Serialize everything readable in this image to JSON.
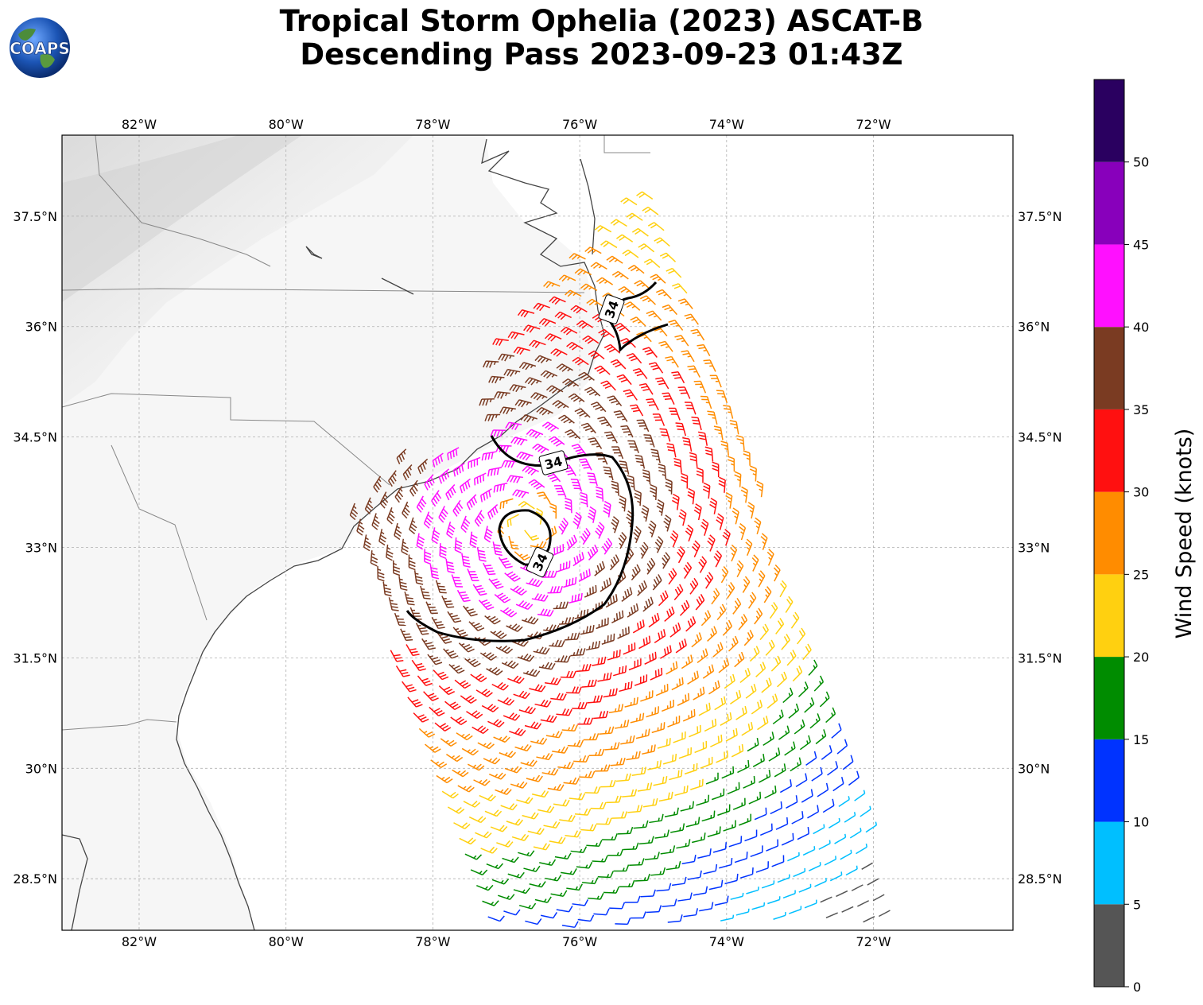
{
  "title": {
    "line1": "Tropical Storm Ophelia (2023) ASCAT-B",
    "line2": "Descending Pass 2023-09-23 01:43Z"
  },
  "logo": {
    "text": "COAPS"
  },
  "map": {
    "lon_range": [
      -83.05,
      -70.1
    ],
    "lat_range": [
      27.8,
      38.6
    ],
    "lon_ticks": [
      {
        "value": -82,
        "label": "82°W"
      },
      {
        "value": -80,
        "label": "80°W"
      },
      {
        "value": -78,
        "label": "78°W"
      },
      {
        "value": -76,
        "label": "76°W"
      },
      {
        "value": -74,
        "label": "74°W"
      },
      {
        "value": -72,
        "label": "72°W"
      }
    ],
    "lat_ticks": [
      {
        "value": 37.5,
        "label": "37.5°N"
      },
      {
        "value": 36,
        "label": "36°N"
      },
      {
        "value": 34.5,
        "label": "34.5°N"
      },
      {
        "value": 33,
        "label": "33°N"
      },
      {
        "value": 31.5,
        "label": "31.5°N"
      },
      {
        "value": 30,
        "label": "30°N"
      },
      {
        "value": 28.5,
        "label": "28.5°N"
      }
    ],
    "gridlines": true,
    "storm_center": {
      "lon": -76.7,
      "lat": 33.3
    },
    "contour_label": "34",
    "swath": {
      "northwest": [
        -78.6,
        34.8
      ],
      "direction": "descending"
    }
  },
  "colorbar": {
    "label": "Wind Speed (knots)",
    "ticks": [
      "0",
      "5",
      "10",
      "15",
      "20",
      "25",
      "30",
      "35",
      "40",
      "45",
      "50"
    ],
    "bins": [
      {
        "min": 0,
        "max": 5,
        "color": "#555555"
      },
      {
        "min": 5,
        "max": 10,
        "color": "#00bfff"
      },
      {
        "min": 10,
        "max": 15,
        "color": "#0033ff"
      },
      {
        "min": 15,
        "max": 20,
        "color": "#008c00"
      },
      {
        "min": 20,
        "max": 25,
        "color": "#ffd010"
      },
      {
        "min": 25,
        "max": 30,
        "color": "#ff8c00"
      },
      {
        "min": 30,
        "max": 35,
        "color": "#ff1010"
      },
      {
        "min": 35,
        "max": 40,
        "color": "#7a3b22"
      },
      {
        "min": 40,
        "max": 45,
        "color": "#ff10ff"
      },
      {
        "min": 45,
        "max": 50,
        "color": "#8800bb"
      },
      {
        "min": 50,
        "max": 55,
        "color": "#2a0060"
      }
    ]
  }
}
